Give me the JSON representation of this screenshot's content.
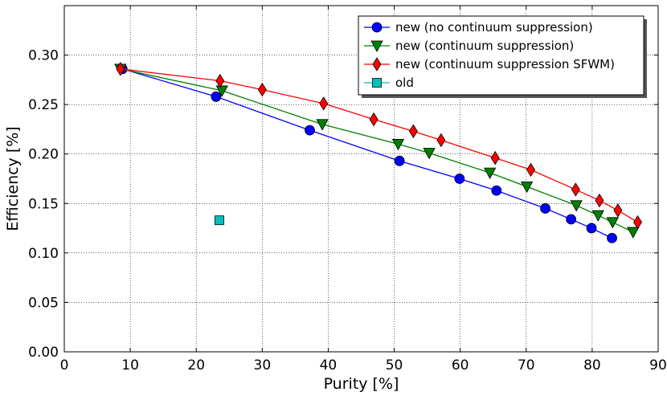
{
  "chart_data": {
    "type": "line",
    "title": "",
    "xlabel": "Purity [%]",
    "ylabel": "Efficiency [%]",
    "xlim": [
      0,
      90
    ],
    "ylim": [
      0.0,
      0.35
    ],
    "x_ticks": [
      0,
      10,
      20,
      30,
      40,
      50,
      60,
      70,
      80,
      90
    ],
    "y_ticks": [
      0.0,
      0.05,
      0.1,
      0.15,
      0.2,
      0.25,
      0.3
    ],
    "x_tick_labels": [
      "0",
      "10",
      "20",
      "30",
      "40",
      "50",
      "60",
      "70",
      "80",
      "90"
    ],
    "y_tick_labels": [
      "0.00",
      "0.05",
      "0.10",
      "0.15",
      "0.20",
      "0.25",
      "0.30"
    ],
    "grid": true,
    "legend_position": "top-right",
    "series": [
      {
        "name": "new (no continuum suppression)",
        "color": "#0000ff",
        "marker": "circle",
        "line": true,
        "x": [
          8.8,
          23.0,
          37.2,
          50.8,
          59.9,
          65.5,
          72.9,
          76.8,
          79.9,
          83.0
        ],
        "y": [
          0.286,
          0.258,
          0.224,
          0.193,
          0.175,
          0.163,
          0.145,
          0.134,
          0.125,
          0.115
        ]
      },
      {
        "name": "new (continuum suppression)",
        "color": "#008000",
        "marker": "triangle-down",
        "line": true,
        "x": [
          8.5,
          23.9,
          39.1,
          50.6,
          55.3,
          64.5,
          70.1,
          77.6,
          80.9,
          83.1,
          86.2
        ],
        "y": [
          0.286,
          0.264,
          0.23,
          0.21,
          0.201,
          0.181,
          0.167,
          0.148,
          0.138,
          0.131,
          0.121
        ]
      },
      {
        "name": "new (continuum suppression SFWM)",
        "color": "#ff0000",
        "marker": "diamond",
        "line": true,
        "x": [
          8.5,
          23.6,
          30.0,
          39.3,
          46.9,
          52.9,
          57.1,
          65.3,
          70.7,
          77.5,
          81.1,
          83.9,
          86.9
        ],
        "y": [
          0.286,
          0.274,
          0.265,
          0.251,
          0.235,
          0.223,
          0.214,
          0.196,
          0.184,
          0.164,
          0.153,
          0.143,
          0.131
        ]
      },
      {
        "name": "old",
        "color": "#00bfbf",
        "marker": "square",
        "line": false,
        "x": [
          23.5
        ],
        "y": [
          0.133
        ]
      }
    ]
  }
}
